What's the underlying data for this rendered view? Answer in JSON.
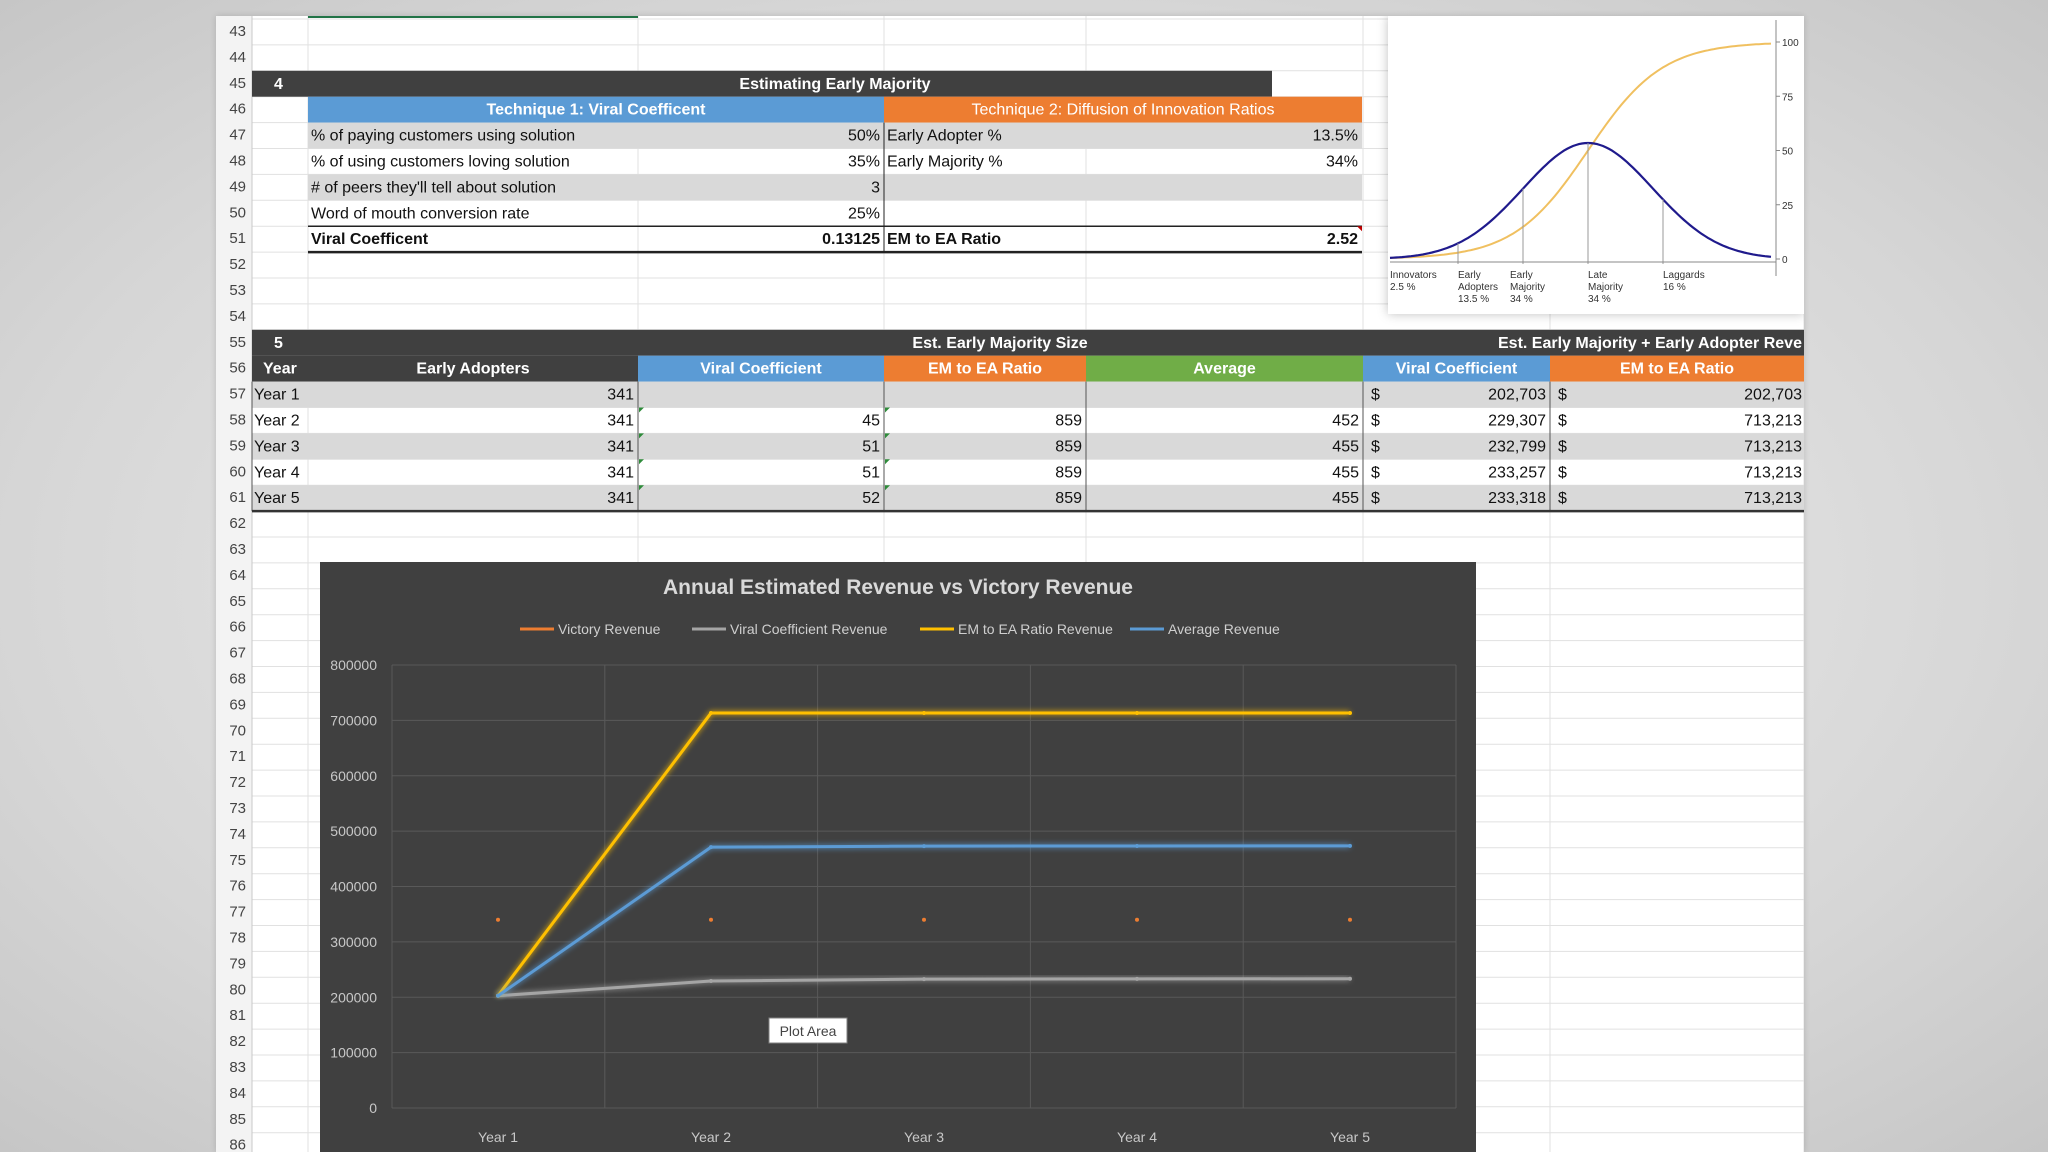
{
  "sheet": {
    "row_numbers": [
      43,
      44,
      45,
      46,
      47,
      48,
      49,
      50,
      51,
      52,
      53,
      54,
      55,
      56,
      57,
      58,
      59,
      60,
      61,
      62,
      63,
      64,
      65,
      66,
      67,
      68,
      69,
      70,
      71,
      72,
      73,
      74,
      75,
      76,
      77,
      78,
      79,
      80,
      81,
      82,
      83,
      84,
      85,
      86
    ],
    "section4": {
      "number": "4",
      "title": "Estimating Early Majority",
      "technique1_header": "Technique 1: Viral Coefficent",
      "technique2_header": "Technique 2: Diffusion of Innovation Ratios",
      "technique1_rows": [
        {
          "label": "% of paying customers using solution",
          "value": "50%"
        },
        {
          "label": "% of using customers loving solution",
          "value": "35%"
        },
        {
          "label": "# of peers they'll tell about solution",
          "value": "3"
        },
        {
          "label": "Word of mouth conversion rate",
          "value": "25%"
        }
      ],
      "technique1_total": {
        "label": "Viral Coefficent",
        "value": "0.13125"
      },
      "technique2_rows": [
        {
          "label": "Early Adopter %",
          "value": "13.5%"
        },
        {
          "label": "Early Majority %",
          "value": "34%"
        }
      ],
      "technique2_total": {
        "label": "EM to EA Ratio",
        "value": "2.52"
      }
    },
    "section5": {
      "number": "5",
      "title": "Est. Early Majority Size",
      "title2": "Est. Early Majority + Early Adopter Reve",
      "headers": {
        "year": "Year",
        "early_adopters": "Early Adopters",
        "viral": "Viral Coefficient",
        "em_ea": "EM to EA Ratio",
        "average": "Average",
        "viral_rev": "Viral Coefficient",
        "em_ea_rev": "EM to EA Ratio"
      },
      "currency": "$",
      "rows": [
        {
          "year": "Year 1",
          "ea": "341",
          "viral": "",
          "em": "",
          "avg": "",
          "vrev": "202,703",
          "erev": "202,703"
        },
        {
          "year": "Year 2",
          "ea": "341",
          "viral": "45",
          "em": "859",
          "avg": "452",
          "vrev": "229,307",
          "erev": "713,213"
        },
        {
          "year": "Year 3",
          "ea": "341",
          "viral": "51",
          "em": "859",
          "avg": "455",
          "vrev": "232,799",
          "erev": "713,213"
        },
        {
          "year": "Year 4",
          "ea": "341",
          "viral": "51",
          "em": "859",
          "avg": "455",
          "vrev": "233,257",
          "erev": "713,213"
        },
        {
          "year": "Year 5",
          "ea": "341",
          "viral": "52",
          "em": "859",
          "avg": "455",
          "vrev": "233,318",
          "erev": "713,213"
        }
      ]
    }
  },
  "colors": {
    "dark_header": "#404040",
    "blue_header": "#5b9bd5",
    "orange_header": "#ed7d31",
    "green_header": "#70ad47",
    "row_shade": "#d9d9d9",
    "chart_bg": "#404040",
    "series_victory": "#ed7d31",
    "series_viral": "#a5a5a5",
    "series_em": "#ffc000",
    "series_avg": "#5b9bd5"
  },
  "chart_data": {
    "type": "line",
    "title": "Annual Estimated Revenue vs Victory Revenue",
    "categories": [
      "Year 1",
      "Year 2",
      "Year 3",
      "Year 4",
      "Year 5"
    ],
    "ylim": [
      0,
      800000
    ],
    "y_ticks": [
      "0",
      "100000",
      "200000",
      "300000",
      "400000",
      "500000",
      "600000",
      "700000",
      "800000"
    ],
    "grid": true,
    "legend": "top",
    "series": [
      {
        "name": "Victory Revenue",
        "values": [
          340000,
          340000,
          340000,
          340000,
          340000
        ]
      },
      {
        "name": "Viral Coefficient Revenue",
        "values": [
          202703,
          229307,
          232799,
          233257,
          233318
        ]
      },
      {
        "name": "EM to EA Ratio Revenue",
        "values": [
          202703,
          713213,
          713213,
          713213,
          713213
        ]
      },
      {
        "name": "Average Revenue",
        "values": [
          202703,
          471000,
          473000,
          473235,
          473266
        ]
      }
    ],
    "tooltip": "Plot Area"
  },
  "diffusion_chart": {
    "type": "line",
    "right_axis_ticks": [
      "100",
      "75",
      "50",
      "25",
      "0"
    ],
    "categories": [
      {
        "name": "Innovators",
        "pct": "2.5 %"
      },
      {
        "name": "Early Adopters",
        "pct": "13.5 %"
      },
      {
        "name": "Early Majority",
        "pct": "34 %"
      },
      {
        "name": "Late Majority",
        "pct": "34 %"
      },
      {
        "name": "Laggards",
        "pct": "16 %"
      }
    ],
    "bell_color": "#1f1a8c",
    "cumulative_color": "#f0c060"
  }
}
